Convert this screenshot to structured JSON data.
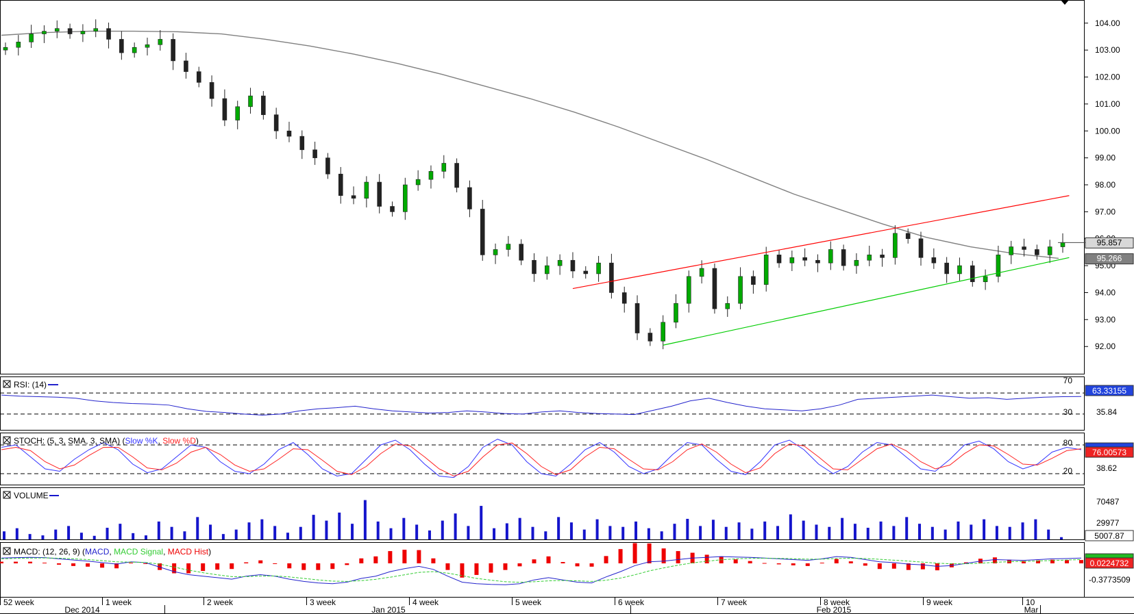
{
  "chart_data": {
    "type": "line",
    "main": {
      "y_ticks": [
        "104.00",
        "103.00",
        "102.00",
        "101.00",
        "100.00",
        "99.00",
        "98.00",
        "97.00",
        "96.00",
        "95.00",
        "94.00",
        "93.00",
        "92.00"
      ],
      "ylim": [
        91.65,
        104.35
      ],
      "last_price_label": "95.857",
      "last_price": 95.857,
      "ma_label": "95.266",
      "ma_value": 95.266,
      "price_series_approx": [
        103.1,
        103.3,
        103.6,
        103.7,
        103.8,
        103.6,
        103.7,
        103.8,
        103.4,
        102.9,
        103.1,
        103.2,
        103.4,
        102.6,
        102.2,
        101.8,
        101.2,
        100.4,
        100.9,
        101.3,
        100.6,
        100.0,
        99.8,
        99.3,
        99.0,
        98.4,
        97.6,
        97.5,
        98.1,
        97.2,
        97.0,
        98.0,
        98.2,
        98.5,
        98.8,
        97.9,
        97.1,
        95.4,
        95.6,
        95.8,
        95.2,
        94.7,
        95.0,
        95.2,
        94.8,
        94.7,
        95.1,
        94.0,
        93.6,
        92.5,
        92.2,
        92.9,
        93.6,
        94.6,
        94.9,
        93.4,
        93.6,
        94.6,
        94.3,
        95.4,
        95.1,
        95.3,
        95.2,
        95.1,
        95.6,
        95.0,
        95.2,
        95.4,
        95.3,
        96.2,
        96.0,
        95.3,
        95.1,
        94.7,
        95.0,
        94.4,
        94.6,
        95.4,
        95.7,
        95.6,
        95.4,
        95.7,
        95.86
      ],
      "ma_series_approx": [
        103.55,
        103.65,
        103.7,
        103.7,
        103.68,
        103.6,
        103.4,
        103.15,
        102.85,
        102.5,
        102.1,
        101.65,
        101.2,
        100.7,
        100.15,
        99.55,
        98.95,
        98.3,
        97.65,
        97.1,
        96.55,
        96.05,
        95.7,
        95.45,
        95.27
      ],
      "trendlines": [
        {
          "name": "resistance",
          "color": "#ff0000",
          "from": {
            "bar": 44,
            "value": 94.15
          },
          "to": {
            "bar": 82.5,
            "value": 97.6
          }
        },
        {
          "name": "support",
          "color": "#00cc00",
          "from": {
            "bar": 51,
            "value": 92.05
          },
          "to": {
            "bar": 82.5,
            "value": 95.3
          }
        }
      ]
    },
    "rsi": {
      "title": "RSI: (14)",
      "levels": [
        70,
        30
      ],
      "level_labels": [
        "70",
        "30"
      ],
      "extra_label": "35.84",
      "value_label": "63.33155",
      "series_approx": [
        66,
        64,
        63,
        62,
        60,
        55,
        52,
        50,
        49,
        47,
        40,
        35,
        33,
        30,
        28,
        30,
        36,
        40,
        42,
        45,
        40,
        36,
        34,
        32,
        33,
        36,
        34,
        31,
        30,
        34,
        36,
        33,
        31,
        30,
        29,
        37,
        45,
        55,
        60,
        52,
        45,
        40,
        38,
        36,
        40,
        47,
        58,
        60,
        62,
        64,
        66,
        63,
        60,
        61,
        58,
        60,
        62,
        63,
        63.3
      ]
    },
    "stoch": {
      "title": "STOCH: (5, 3, SMA, 3, SMA)",
      "legend": [
        "Slow %K",
        "Slow %D"
      ],
      "levels": [
        80,
        20
      ],
      "level_labels": [
        "80",
        "20"
      ],
      "extra_label": "38.62",
      "value_label": "76.00573",
      "k_series_approx": [
        75,
        80,
        55,
        30,
        25,
        50,
        70,
        85,
        70,
        40,
        22,
        30,
        55,
        80,
        75,
        45,
        25,
        20,
        40,
        70,
        85,
        60,
        30,
        15,
        20,
        50,
        80,
        90,
        70,
        40,
        15,
        12,
        35,
        75,
        92,
        80,
        45,
        20,
        15,
        40,
        70,
        85,
        65,
        35,
        20,
        30,
        60,
        85,
        80,
        50,
        25,
        18,
        45,
        80,
        90,
        70,
        40,
        20,
        35,
        65,
        85,
        80,
        55,
        30,
        25,
        50,
        80,
        88,
        72,
        45,
        30,
        40,
        65,
        75,
        70
      ],
      "d_series_approx": [
        70,
        75,
        68,
        45,
        30,
        38,
        58,
        75,
        75,
        55,
        32,
        28,
        42,
        65,
        75,
        60,
        38,
        25,
        30,
        50,
        72,
        70,
        48,
        25,
        18,
        35,
        62,
        82,
        78,
        55,
        30,
        15,
        25,
        55,
        80,
        84,
        62,
        35,
        18,
        28,
        55,
        75,
        72,
        50,
        30,
        28,
        45,
        70,
        82,
        65,
        40,
        22,
        32,
        62,
        82,
        78,
        55,
        30,
        28,
        50,
        72,
        82,
        68,
        45,
        30,
        38,
        62,
        80,
        78,
        60,
        40,
        38,
        52,
        68,
        72
      ]
    },
    "volume": {
      "title": "VOLUME",
      "y_ticks": [
        "70487",
        "29977"
      ],
      "value_label": "5007.87",
      "series_approx": [
        18000,
        25000,
        12000,
        9000,
        22000,
        30000,
        15000,
        8000,
        26000,
        35000,
        14000,
        9000,
        40000,
        28000,
        18000,
        50000,
        33000,
        12000,
        22000,
        38000,
        45000,
        30000,
        15000,
        28000,
        55000,
        42000,
        60000,
        35000,
        88000,
        40000,
        25000,
        48000,
        33000,
        20000,
        42000,
        58000,
        30000,
        75000,
        25000,
        36000,
        48000,
        28000,
        18000,
        50000,
        38000,
        22000,
        45000,
        30000,
        28000,
        40000,
        25000,
        18000,
        35000,
        46000,
        30000,
        44000,
        28000,
        38000,
        24000,
        40000,
        30000,
        56000,
        42000,
        33000,
        28000,
        48000,
        35000,
        26000,
        40000,
        30000,
        50000,
        35000,
        28000,
        22000,
        40000,
        33000,
        45000,
        30000,
        28000,
        38000,
        45000,
        22000,
        5007.87
      ]
    },
    "macd": {
      "title": "MACD: (12, 26, 9)",
      "legend": [
        "MACD",
        "MACD Signal",
        "MACD Hist"
      ],
      "value_label": "0.0224732",
      "y_tick": "-0.3773509",
      "macd_series_approx": [
        0.35,
        0.38,
        0.4,
        0.38,
        0.3,
        0.22,
        0.15,
        0.05,
        -0.05,
        0.1,
        0.05,
        -0.25,
        -0.55,
        -0.75,
        -0.85,
        -0.95,
        -1.05,
        -0.85,
        -0.75,
        -0.85,
        -1.05,
        -1.2,
        -1.3,
        -1.35,
        -1.25,
        -1.0,
        -0.85,
        -0.55,
        -0.35,
        -0.2,
        -0.4,
        -0.85,
        -1.25,
        -1.35,
        -1.4,
        -1.42,
        -1.35,
        -1.1,
        -0.95,
        -1.1,
        -1.25,
        -1.3,
        -0.9,
        -0.55,
        -0.15,
        0.1,
        0.15,
        0.25,
        0.35,
        0.4,
        0.45,
        0.42,
        0.4,
        0.35,
        0.3,
        0.25,
        0.2,
        0.3,
        0.45,
        0.4,
        0.25,
        0.1,
        0.05,
        -0.05,
        -0.1,
        -0.2,
        -0.15,
        0.0,
        0.15,
        0.25,
        0.22,
        0.2,
        0.25,
        0.3,
        0.32,
        0.35
      ],
      "signal_series_approx": [
        0.3,
        0.33,
        0.35,
        0.36,
        0.34,
        0.3,
        0.25,
        0.18,
        0.1,
        0.08,
        0.06,
        -0.05,
        -0.25,
        -0.45,
        -0.62,
        -0.76,
        -0.88,
        -0.88,
        -0.84,
        -0.84,
        -0.9,
        -1.0,
        -1.1,
        -1.18,
        -1.2,
        -1.15,
        -1.06,
        -0.92,
        -0.76,
        -0.6,
        -0.55,
        -0.65,
        -0.82,
        -1.0,
        -1.12,
        -1.22,
        -1.26,
        -1.22,
        -1.16,
        -1.14,
        -1.16,
        -1.2,
        -1.12,
        -0.98,
        -0.76,
        -0.5,
        -0.3,
        -0.12,
        0.03,
        0.14,
        0.24,
        0.3,
        0.33,
        0.34,
        0.33,
        0.31,
        0.28,
        0.28,
        0.32,
        0.34,
        0.32,
        0.27,
        0.21,
        0.15,
        0.08,
        0.01,
        -0.03,
        -0.03,
        0.01,
        0.07,
        0.11,
        0.13,
        0.16,
        0.19,
        0.22,
        0.25
      ]
    },
    "x_week_labels": [
      "52 week",
      "1 week",
      "2 week",
      "3 week",
      "4 week",
      "5 week",
      "6 week",
      "7 week",
      "8 week",
      "9 week",
      "10"
    ],
    "x_month_labels": [
      "Dec 2014",
      "Jan 2015",
      "Feb 2015",
      "Mar"
    ],
    "colors": {
      "up": "#00aa00",
      "down": "#222222",
      "ma": "#808080",
      "rsi": "#2222cc",
      "stoch_k": "#3333ff",
      "stoch_d": "#ff2222",
      "volume": "#1515cc",
      "macd": "#2222cc",
      "signal": "#33cc33",
      "hist": "#ee0000"
    }
  }
}
